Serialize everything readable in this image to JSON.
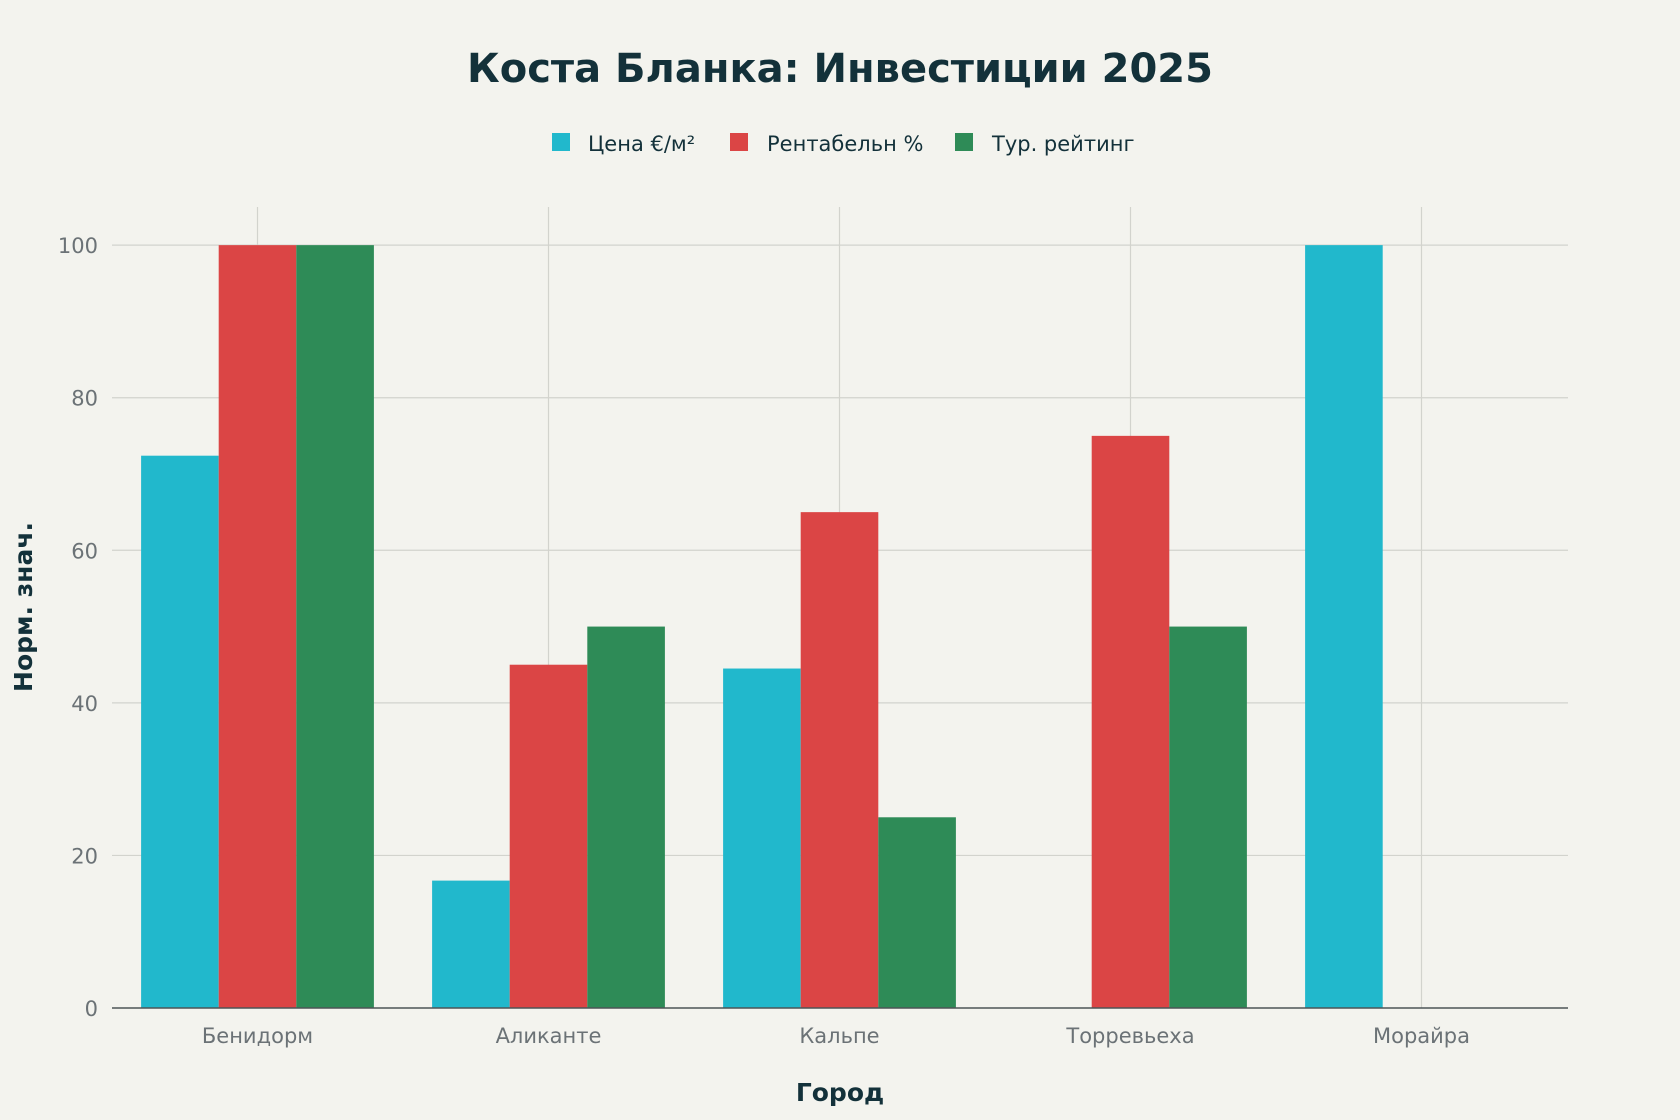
{
  "chart_data": {
    "type": "bar",
    "title": "Коста Бланка: Инвестиции 2025",
    "xlabel": "Город",
    "ylabel": "Норм. знач.",
    "categories": [
      "Бенидорм",
      "Аликанте",
      "Кальпе",
      "Торревьеха",
      "Морайра"
    ],
    "series": [
      {
        "name": "Цена €/м²",
        "color": "#21b8cc",
        "values": [
          72.4,
          16.7,
          44.5,
          0,
          100
        ]
      },
      {
        "name": "Рентабельн %",
        "color": "#db4545",
        "values": [
          100,
          45,
          65,
          75,
          0
        ]
      },
      {
        "name": "Тур. рейтинг",
        "color": "#2e8b57",
        "values": [
          100,
          50,
          25,
          50,
          0
        ]
      }
    ],
    "ylim": [
      0,
      105
    ],
    "yticks": [
      0,
      20,
      40,
      60,
      80,
      100
    ],
    "grid": true,
    "legend_position": "top-center"
  }
}
